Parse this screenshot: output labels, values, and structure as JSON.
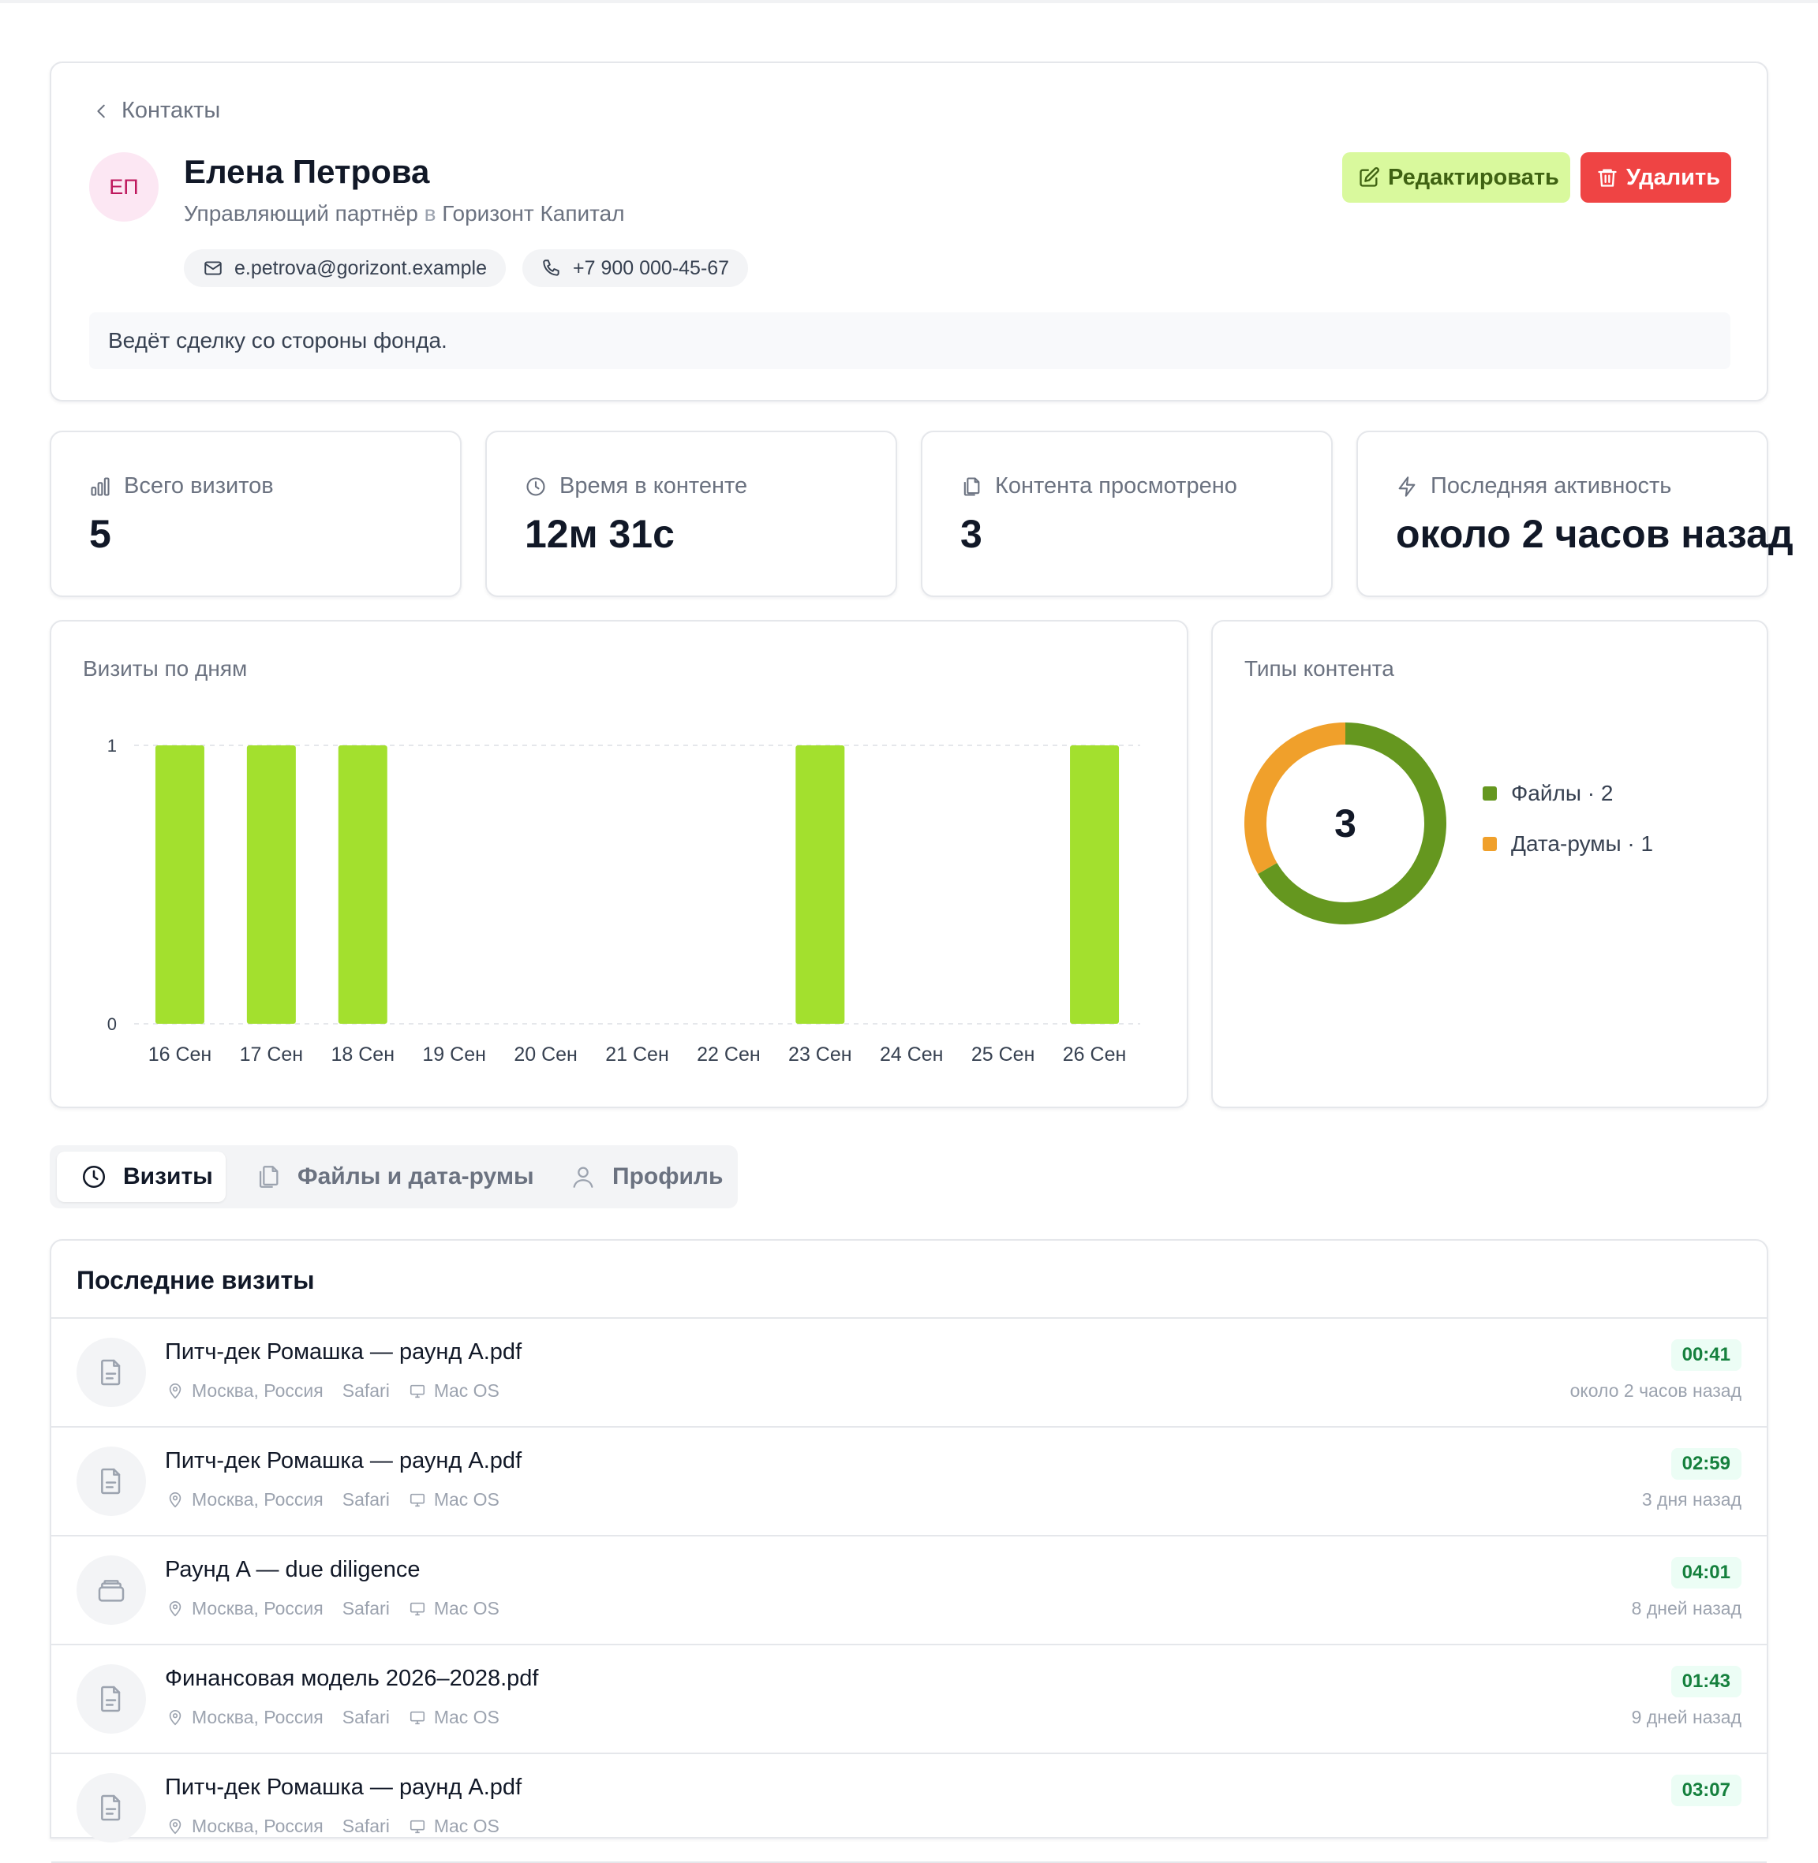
{
  "nav": {
    "back_label": "Контакты"
  },
  "contact": {
    "initials": "ЕП",
    "name": "Елена Петрова",
    "role": "Управляющий партнёр",
    "preposition": "в",
    "company": "Горизонт Капитал",
    "email": "e.petrova@gorizont.example",
    "phone": "+7 900 000-45-67",
    "note": "Ведёт сделку со стороны фонда."
  },
  "actions": {
    "edit_label": "Редактировать",
    "delete_label": "Удалить"
  },
  "stats": [
    {
      "label": "Всего визитов",
      "value": "5",
      "icon": "bar-chart-icon"
    },
    {
      "label": "Время в контенте",
      "value": "12м 31с",
      "icon": "clock-icon"
    },
    {
      "label": "Контента просмотрено",
      "value": "3",
      "icon": "files-icon"
    },
    {
      "label": "Последняя активность",
      "value": "около 2 часов назад",
      "icon": "lightning-icon"
    }
  ],
  "visits_chart": {
    "title": "Визиты по дням"
  },
  "types_chart": {
    "title": "Типы контента",
    "total": "3",
    "legend": [
      {
        "label": "Файлы · 2",
        "color": "#65971f"
      },
      {
        "label": "Дата-румы · 1",
        "color": "#f0a02b"
      }
    ]
  },
  "chart_data": [
    {
      "type": "bar",
      "title": "Визиты по дням",
      "categories": [
        "16 Сен",
        "17 Сен",
        "18 Сен",
        "19 Сен",
        "20 Сен",
        "21 Сен",
        "22 Сен",
        "23 Сен",
        "24 Сен",
        "25 Сен",
        "26 Сен"
      ],
      "values": [
        1,
        1,
        1,
        0,
        0,
        0,
        0,
        1,
        0,
        0,
        1
      ],
      "ylim": [
        0,
        1
      ],
      "yticks": [
        "0",
        "1"
      ],
      "grid": true,
      "color": "#a3e02e"
    },
    {
      "type": "pie",
      "title": "Типы контента",
      "categories": [
        "Файлы",
        "Дата-румы"
      ],
      "values": [
        2,
        1
      ],
      "colors": [
        "#65971f",
        "#f0a02b"
      ],
      "center_label": "3"
    }
  ],
  "tabs": [
    {
      "label": "Визиты",
      "icon": "clock-icon",
      "active": true
    },
    {
      "label": "Файлы и дата-румы",
      "icon": "files-icon",
      "active": false
    },
    {
      "label": "Профиль",
      "icon": "user-icon",
      "active": false
    }
  ],
  "recent": {
    "title": "Последние визиты",
    "rows": [
      {
        "title": "Питч-дек Ромашка — раунд A.pdf",
        "icon": "document-icon",
        "location": "Москва, Россия",
        "browser": "Safari",
        "os": "Mac OS",
        "duration": "00:41",
        "ago": "около 2 часов назад"
      },
      {
        "title": "Питч-дек Ромашка — раунд A.pdf",
        "icon": "document-icon",
        "location": "Москва, Россия",
        "browser": "Safari",
        "os": "Mac OS",
        "duration": "02:59",
        "ago": "3 дня назад"
      },
      {
        "title": "Раунд A — due diligence",
        "icon": "dataroom-icon",
        "location": "Москва, Россия",
        "browser": "Safari",
        "os": "Mac OS",
        "duration": "04:01",
        "ago": "8 дней назад"
      },
      {
        "title": "Финансовая модель 2026–2028.pdf",
        "icon": "document-icon",
        "location": "Москва, Россия",
        "browser": "Safari",
        "os": "Mac OS",
        "duration": "01:43",
        "ago": "9 дней назад"
      },
      {
        "title": "Питч-дек Ромашка — раунд A.pdf",
        "icon": "document-icon",
        "location": "Москва, Россия",
        "browser": "Safari",
        "os": "Mac OS",
        "duration": "03:07",
        "ago": ""
      }
    ]
  }
}
